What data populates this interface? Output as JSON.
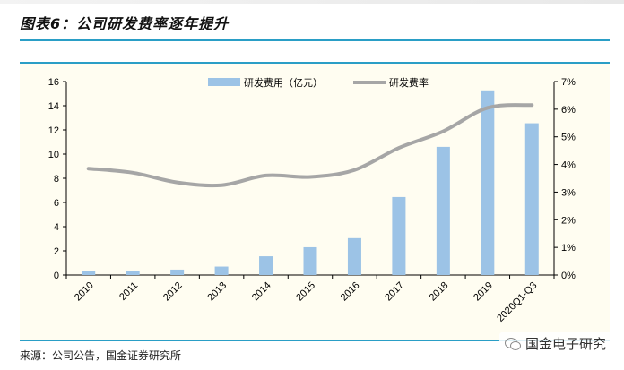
{
  "figure": {
    "title": "图表6：公司研发费率逐年提升",
    "source": "来源：公司公告，国金证券研究所",
    "watermark": "国金电子研究"
  },
  "colors": {
    "bar": "#9cc3e6",
    "line": "#a6a6a6",
    "rule": "#2a9ec6",
    "plot_bg": "#fffdf1"
  },
  "chart_data": {
    "type": "bar",
    "categories": [
      "2010",
      "2011",
      "2012",
      "2013",
      "2014",
      "2015",
      "2016",
      "2017",
      "2018",
      "2019",
      "2020Q1-Q3"
    ],
    "series": [
      {
        "name": "研发费用（亿元）",
        "type": "bar",
        "axis": "left",
        "values": [
          0.3,
          0.35,
          0.45,
          0.7,
          1.55,
          2.3,
          3.05,
          6.45,
          10.6,
          15.2,
          12.55
        ]
      },
      {
        "name": "研发费率",
        "type": "line",
        "axis": "right",
        "values": [
          3.85,
          3.7,
          3.35,
          3.25,
          3.6,
          3.55,
          3.8,
          4.6,
          5.2,
          6.05,
          6.15
        ]
      }
    ],
    "y_left": {
      "ylim": [
        0,
        16
      ],
      "ticks": [
        "0",
        "2",
        "4",
        "6",
        "8",
        "10",
        "12",
        "14",
        "16"
      ]
    },
    "y_right": {
      "ylim": [
        0,
        7
      ],
      "ticks": [
        "0%",
        "1%",
        "2%",
        "3%",
        "4%",
        "5%",
        "6%",
        "7%"
      ]
    },
    "legend": {
      "placement": "top-center"
    },
    "grid": false
  }
}
